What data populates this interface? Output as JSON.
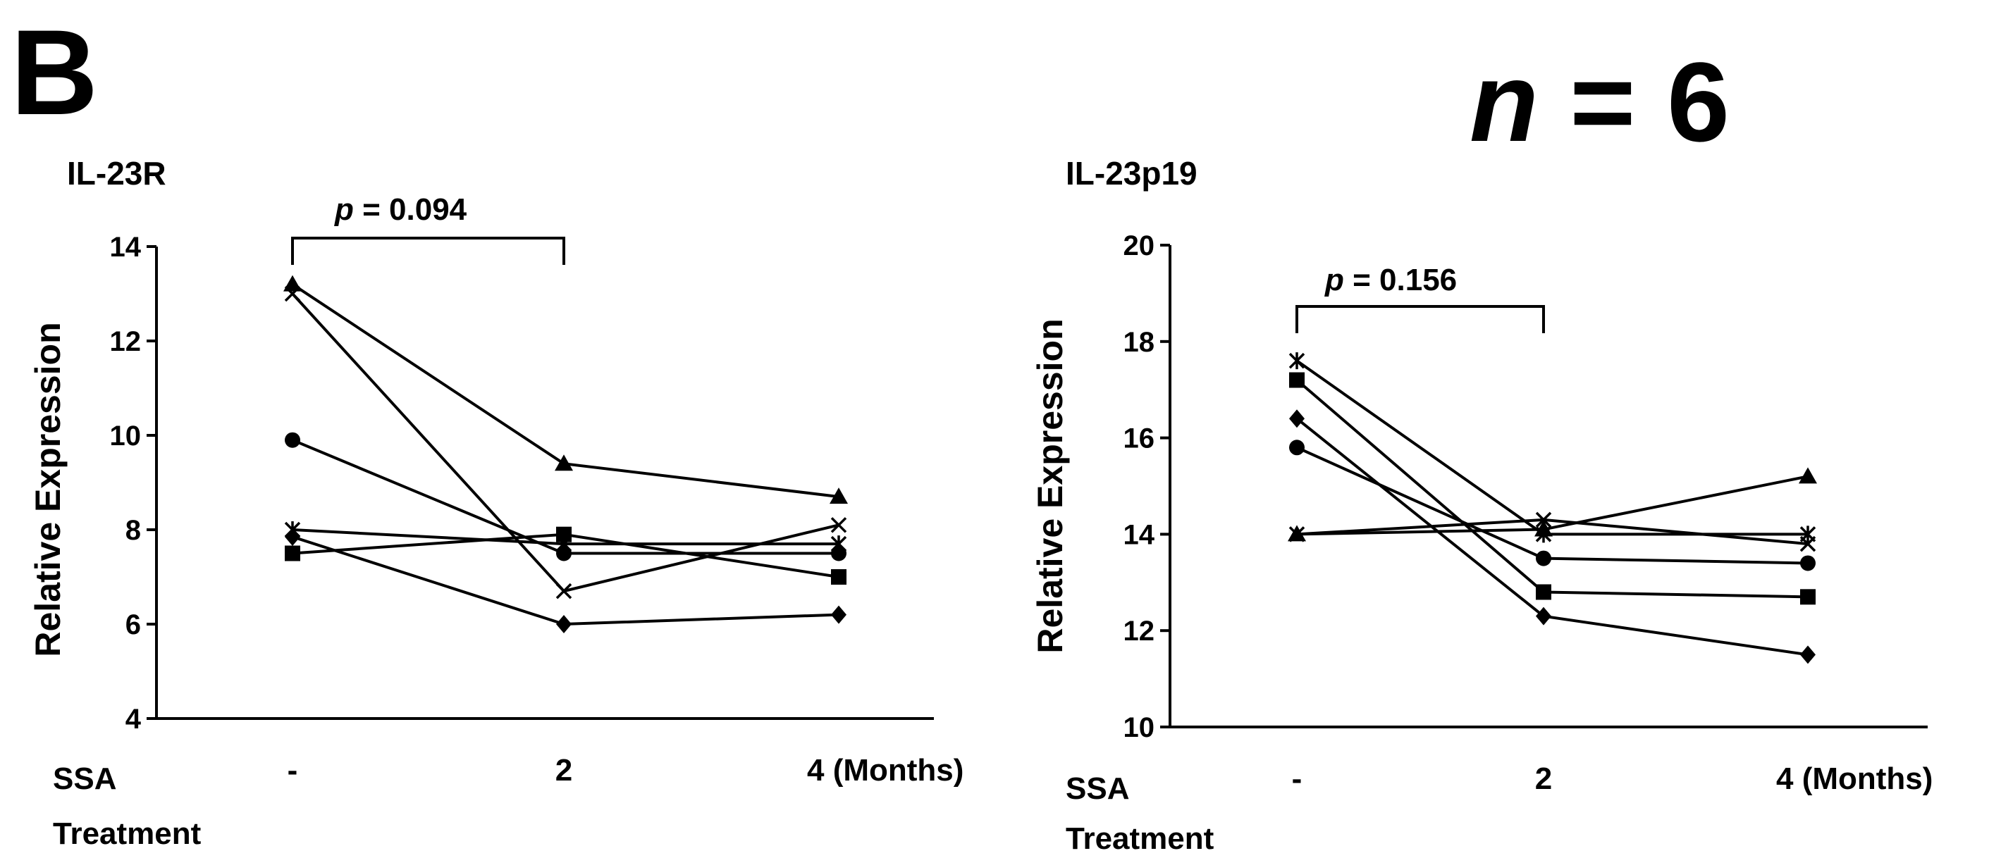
{
  "figure": {
    "panel_label": "B",
    "n_label_italic": "n",
    "n_label_rest": " = 6",
    "x_axis_title_line1": "SSA",
    "x_axis_title_line2": "Treatment"
  },
  "chart_data": [
    {
      "type": "line",
      "title": "IL-23R",
      "ylabel": "Relative Expression",
      "xlabel": "SSA Treatment",
      "categories": [
        "-",
        "2",
        "4 (Months)"
      ],
      "ylim": [
        4,
        14
      ],
      "yticks": [
        4,
        6,
        8,
        10,
        12,
        14
      ],
      "grid": false,
      "annotation": {
        "p_symbol": "p",
        "p_text": " = 0.094",
        "from_category": 0,
        "to_category": 1
      },
      "series": [
        {
          "name": "triangle",
          "marker": "triangle",
          "values": [
            13.2,
            9.4,
            8.7
          ]
        },
        {
          "name": "x",
          "marker": "x",
          "values": [
            13.0,
            6.7,
            8.1
          ]
        },
        {
          "name": "circle",
          "marker": "circle",
          "values": [
            9.9,
            7.5,
            7.5
          ]
        },
        {
          "name": "asterisk",
          "marker": "asterisk",
          "values": [
            8.0,
            7.7,
            7.7
          ]
        },
        {
          "name": "diamond",
          "marker": "diamond",
          "values": [
            7.85,
            6.0,
            6.2
          ]
        },
        {
          "name": "square",
          "marker": "square",
          "values": [
            7.5,
            7.9,
            7.0
          ]
        }
      ]
    },
    {
      "type": "line",
      "title": "IL-23p19",
      "ylabel": "Relative Expression",
      "xlabel": "SSA Treatment",
      "categories": [
        "-",
        "2",
        "4 (Months)"
      ],
      "ylim": [
        10,
        20
      ],
      "yticks": [
        10,
        12,
        14,
        16,
        18,
        20
      ],
      "grid": false,
      "annotation": {
        "p_symbol": "p",
        "p_text": " = 0.156",
        "from_category": 0,
        "to_category": 1
      },
      "series": [
        {
          "name": "asterisk",
          "marker": "asterisk",
          "values": [
            17.6,
            14.0,
            14.0
          ]
        },
        {
          "name": "square",
          "marker": "square",
          "values": [
            17.2,
            12.8,
            12.7
          ]
        },
        {
          "name": "diamond",
          "marker": "diamond",
          "values": [
            16.4,
            12.3,
            11.5
          ]
        },
        {
          "name": "circle",
          "marker": "circle",
          "values": [
            15.8,
            13.5,
            13.4
          ]
        },
        {
          "name": "triangle",
          "marker": "triangle",
          "values": [
            14.0,
            14.1,
            15.2
          ]
        },
        {
          "name": "x",
          "marker": "x",
          "values": [
            14.0,
            14.3,
            13.8
          ]
        }
      ]
    }
  ]
}
